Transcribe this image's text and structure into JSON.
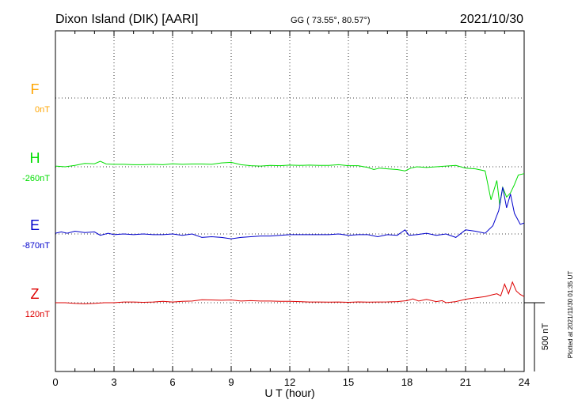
{
  "header": {
    "station": "Dixon Island (DIK)  [AARI]",
    "coords": "GG ( 73.55°,  80.57°)",
    "date": "2021/10/30"
  },
  "plotted_note": "Plotted at 2021/11/30 01:35 UT",
  "scale_label": "500 nT",
  "colors": {
    "F": "#ffa500",
    "H": "#00dd00",
    "E": "#0000cc",
    "Z": "#dd0000"
  },
  "chart_data": {
    "type": "line",
    "xlabel": "U T (hour)",
    "xlim": [
      0,
      24
    ],
    "x_ticks": [
      "0",
      "3",
      "6",
      "9",
      "12",
      "15",
      "18",
      "21",
      "24"
    ],
    "grid": true,
    "scale_bar_nT": 500,
    "series": [
      {
        "name": "F",
        "baseline_label": "0nT",
        "color": "#ffa500",
        "x": [],
        "values": []
      },
      {
        "name": "H",
        "baseline_label": "-260nT",
        "color": "#00dd00",
        "x": [
          0,
          0.5,
          1,
          1.5,
          2,
          2.3,
          2.6,
          3,
          3.5,
          4,
          4.5,
          5,
          5.5,
          6,
          6.5,
          7,
          7.5,
          8,
          8.5,
          9,
          9.5,
          10,
          10.5,
          11,
          11.5,
          12,
          12.5,
          13,
          13.5,
          14,
          14.5,
          15,
          15.5,
          16,
          16.3,
          16.6,
          17,
          17.5,
          17.9,
          18.2,
          18.5,
          19,
          19.5,
          20,
          20.5,
          21,
          21.5,
          22,
          22.3,
          22.6,
          22.75,
          22.9,
          23.1,
          23.3,
          23.5,
          23.7,
          24
        ],
        "values": [
          5,
          0,
          10,
          25,
          22,
          40,
          20,
          18,
          18,
          15,
          15,
          18,
          15,
          22,
          18,
          20,
          20,
          18,
          28,
          32,
          15,
          8,
          5,
          10,
          8,
          12,
          10,
          12,
          10,
          10,
          15,
          8,
          8,
          -5,
          -20,
          -10,
          -15,
          -20,
          -30,
          -10,
          0,
          -5,
          0,
          5,
          10,
          -10,
          -15,
          -30,
          -240,
          -100,
          -280,
          -150,
          -220,
          -190,
          -130,
          -60,
          -50
        ]
      },
      {
        "name": "E",
        "baseline_label": "-870nT",
        "color": "#0000cc",
        "x": [
          0,
          0.3,
          0.6,
          1,
          1.5,
          2,
          2.3,
          2.7,
          3,
          3.5,
          4,
          4.5,
          5,
          5.5,
          6,
          6.5,
          7,
          7.5,
          8,
          8.5,
          9,
          9.5,
          10,
          10.5,
          11,
          11.5,
          12,
          12.5,
          13,
          13.5,
          14,
          14.5,
          15,
          15.5,
          16,
          16.5,
          17,
          17.5,
          17.9,
          18.1,
          18.5,
          19,
          19.5,
          20,
          20.5,
          21,
          21.5,
          22,
          22.4,
          22.7,
          22.9,
          23.1,
          23.3,
          23.5,
          23.8,
          24
        ],
        "values": [
          5,
          15,
          5,
          20,
          10,
          15,
          -10,
          5,
          -5,
          0,
          -5,
          0,
          -5,
          -5,
          0,
          -10,
          0,
          -25,
          -20,
          -25,
          -35,
          -25,
          -20,
          -15,
          -15,
          -10,
          -5,
          -5,
          -5,
          -5,
          -5,
          0,
          -10,
          -5,
          -5,
          -20,
          -5,
          -10,
          30,
          -10,
          -5,
          5,
          -10,
          0,
          -25,
          30,
          20,
          5,
          60,
          170,
          340,
          190,
          290,
          150,
          70,
          80
        ]
      },
      {
        "name": "Z",
        "baseline_label": "120nT",
        "color": "#dd0000",
        "x": [
          0,
          0.5,
          1,
          1.5,
          2,
          2.5,
          3,
          3.5,
          4,
          4.5,
          5,
          5.5,
          6,
          6.5,
          7,
          7.5,
          8,
          8.5,
          9,
          9.5,
          10,
          10.5,
          11,
          11.5,
          12,
          12.5,
          13,
          13.5,
          14,
          14.5,
          15,
          15.5,
          16,
          16.5,
          17,
          17.5,
          18,
          18.3,
          18.6,
          19,
          19.5,
          19.8,
          20,
          20.5,
          21,
          21.5,
          22,
          22.3,
          22.6,
          22.8,
          23,
          23.2,
          23.4,
          23.6,
          23.8,
          24
        ],
        "values": [
          0,
          0,
          -5,
          -8,
          -5,
          0,
          0,
          5,
          5,
          3,
          5,
          10,
          5,
          10,
          12,
          22,
          20,
          18,
          20,
          12,
          15,
          12,
          12,
          10,
          10,
          8,
          5,
          5,
          4,
          5,
          3,
          6,
          4,
          5,
          6,
          8,
          15,
          28,
          12,
          24,
          8,
          15,
          0,
          8,
          25,
          35,
          45,
          55,
          65,
          50,
          135,
          65,
          150,
          85,
          60,
          45
        ]
      }
    ]
  }
}
